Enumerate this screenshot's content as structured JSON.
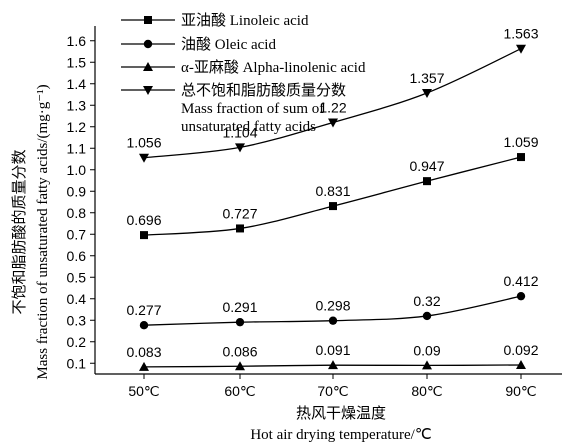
{
  "chart_data": {
    "type": "line",
    "categories": [
      "50℃",
      "60℃",
      "70℃",
      "80℃",
      "90℃"
    ],
    "series": [
      {
        "name": "亚油酸 Linoleic acid",
        "marker": "square",
        "values": [
          0.696,
          0.727,
          0.831,
          0.947,
          1.059
        ],
        "labels": [
          "0.696",
          "0.727",
          "0.831",
          "0.947",
          "1.059"
        ]
      },
      {
        "name": "油酸 Oleic acid",
        "marker": "circle",
        "values": [
          0.277,
          0.291,
          0.298,
          0.32,
          0.412
        ],
        "labels": [
          "0.277",
          "0.291",
          "0.298",
          "0.32",
          "0.412"
        ]
      },
      {
        "name": "α-亚麻酸 Alpha-linolenic acid",
        "marker": "triangle-up",
        "values": [
          0.083,
          0.086,
          0.091,
          0.09,
          0.092
        ],
        "labels": [
          "0.083",
          "0.086",
          "0.091",
          "0.09",
          "0.092"
        ]
      },
      {
        "name": "总不饱和脂肪酸质量分数",
        "name_line2": "Mass fraction of sum of",
        "name_line3": "unsaturated fatty acids",
        "marker": "triangle-down",
        "values": [
          1.056,
          1.104,
          1.22,
          1.357,
          1.563
        ],
        "labels": [
          "1.056",
          "1.104",
          "1.22",
          "1.357",
          "1.563"
        ]
      }
    ],
    "yticks": [
      "0.1",
      "0.2",
      "0.3",
      "0.4",
      "0.5",
      "0.6",
      "0.7",
      "0.8",
      "0.9",
      "1.0",
      "1.1",
      "1.2",
      "1.3",
      "1.4",
      "1.5",
      "1.6"
    ],
    "ylim": [
      0.05,
      1.65
    ],
    "xlabel_cn": "热风干燥温度",
    "xlabel_en": "Hot air drying temperature/℃",
    "ylabel_cn": "不饱和脂肪酸的质量分数",
    "ylabel_en": "Mass fraction of unsaturated fatty acids/(mg·g⁻¹)",
    "grid": false,
    "legend_position": "top-left"
  }
}
